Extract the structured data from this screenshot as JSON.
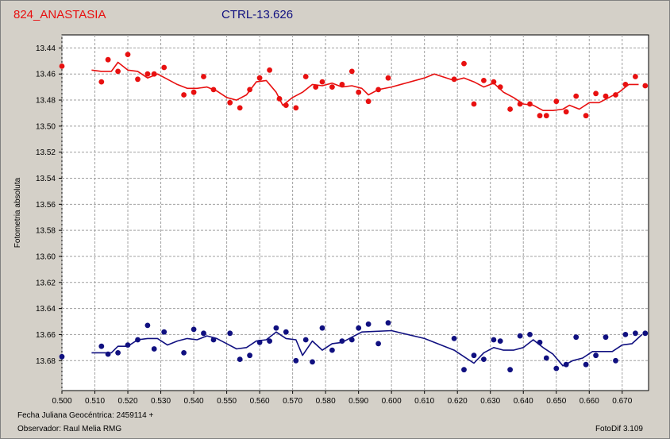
{
  "header": {
    "target": "824_ANASTASIA",
    "control": "CTRL-13.626"
  },
  "footer": {
    "jd": "Fecha Juliana Geocéntrica: 2459114 +",
    "observer": "Observador: Raul Melia RMG",
    "software": "FotoDif 3.109"
  },
  "colors": {
    "target": "#e81010",
    "control": "#101080",
    "plot_bg": "#ffffff",
    "grid": "#a0a0a0"
  },
  "chart_data": {
    "type": "scatter",
    "title": "",
    "xlabel": "",
    "ylabel": "Fotometria absoluta",
    "xlim": [
      0.5,
      0.678
    ],
    "ylim": [
      13.43,
      13.703
    ],
    "y_inverted": true,
    "grid": true,
    "x_ticks": [
      "0.500",
      "0.510",
      "0.520",
      "0.530",
      "0.540",
      "0.550",
      "0.560",
      "0.570",
      "0.580",
      "0.590",
      "0.600",
      "0.610",
      "0.620",
      "0.630",
      "0.640",
      "0.650",
      "0.660",
      "0.670"
    ],
    "y_ticks": [
      "13.44",
      "13.46",
      "13.48",
      "13.50",
      "13.52",
      "13.54",
      "13.56",
      "13.58",
      "13.60",
      "13.62",
      "13.64",
      "13.66",
      "13.68"
    ],
    "series": [
      {
        "key": "target",
        "points": [
          [
            0.5,
            13.454
          ],
          [
            0.512,
            13.466
          ],
          [
            0.514,
            13.449
          ],
          [
            0.517,
            13.458
          ],
          [
            0.52,
            13.445
          ],
          [
            0.523,
            13.464
          ],
          [
            0.526,
            13.46
          ],
          [
            0.528,
            13.46
          ],
          [
            0.531,
            13.455
          ],
          [
            0.537,
            13.476
          ],
          [
            0.54,
            13.474
          ],
          [
            0.543,
            13.462
          ],
          [
            0.546,
            13.472
          ],
          [
            0.551,
            13.482
          ],
          [
            0.554,
            13.486
          ],
          [
            0.557,
            13.472
          ],
          [
            0.56,
            13.463
          ],
          [
            0.563,
            13.457
          ],
          [
            0.566,
            13.479
          ],
          [
            0.568,
            13.484
          ],
          [
            0.571,
            13.486
          ],
          [
            0.574,
            13.462
          ],
          [
            0.577,
            13.47
          ],
          [
            0.579,
            13.466
          ],
          [
            0.582,
            13.47
          ],
          [
            0.585,
            13.468
          ],
          [
            0.588,
            13.458
          ],
          [
            0.59,
            13.474
          ],
          [
            0.593,
            13.481
          ],
          [
            0.596,
            13.472
          ],
          [
            0.599,
            13.463
          ],
          [
            0.619,
            13.464
          ],
          [
            0.622,
            13.452
          ],
          [
            0.625,
            13.483
          ],
          [
            0.628,
            13.465
          ],
          [
            0.631,
            13.466
          ],
          [
            0.633,
            13.47
          ],
          [
            0.636,
            13.487
          ],
          [
            0.639,
            13.483
          ],
          [
            0.642,
            13.483
          ],
          [
            0.645,
            13.492
          ],
          [
            0.647,
            13.492
          ],
          [
            0.65,
            13.481
          ],
          [
            0.653,
            13.489
          ],
          [
            0.656,
            13.477
          ],
          [
            0.659,
            13.492
          ],
          [
            0.662,
            13.475
          ],
          [
            0.665,
            13.477
          ],
          [
            0.668,
            13.476
          ],
          [
            0.671,
            13.468
          ],
          [
            0.674,
            13.462
          ],
          [
            0.677,
            13.469
          ]
        ],
        "fit": [
          [
            0.509,
            13.457
          ],
          [
            0.512,
            13.458
          ],
          [
            0.515,
            13.458
          ],
          [
            0.517,
            13.451
          ],
          [
            0.52,
            13.457
          ],
          [
            0.523,
            13.458
          ],
          [
            0.526,
            13.463
          ],
          [
            0.529,
            13.46
          ],
          [
            0.532,
            13.464
          ],
          [
            0.535,
            13.468
          ],
          [
            0.538,
            13.471
          ],
          [
            0.541,
            13.471
          ],
          [
            0.544,
            13.47
          ],
          [
            0.547,
            13.473
          ],
          [
            0.55,
            13.478
          ],
          [
            0.553,
            13.48
          ],
          [
            0.556,
            13.476
          ],
          [
            0.559,
            13.466
          ],
          [
            0.562,
            13.465
          ],
          [
            0.565,
            13.474
          ],
          [
            0.567,
            13.484
          ],
          [
            0.57,
            13.478
          ],
          [
            0.573,
            13.474
          ],
          [
            0.576,
            13.468
          ],
          [
            0.579,
            13.469
          ],
          [
            0.582,
            13.467
          ],
          [
            0.585,
            13.47
          ],
          [
            0.588,
            13.469
          ],
          [
            0.591,
            13.471
          ],
          [
            0.593,
            13.476
          ],
          [
            0.596,
            13.472
          ],
          [
            0.6,
            13.47
          ],
          [
            0.61,
            13.463
          ],
          [
            0.613,
            13.46
          ],
          [
            0.619,
            13.465
          ],
          [
            0.622,
            13.463
          ],
          [
            0.625,
            13.466
          ],
          [
            0.628,
            13.47
          ],
          [
            0.631,
            13.467
          ],
          [
            0.634,
            13.474
          ],
          [
            0.637,
            13.478
          ],
          [
            0.64,
            13.483
          ],
          [
            0.643,
            13.484
          ],
          [
            0.646,
            13.488
          ],
          [
            0.649,
            13.488
          ],
          [
            0.652,
            13.487
          ],
          [
            0.654,
            13.484
          ],
          [
            0.657,
            13.487
          ],
          [
            0.66,
            13.482
          ],
          [
            0.663,
            13.482
          ],
          [
            0.666,
            13.478
          ],
          [
            0.669,
            13.474
          ],
          [
            0.672,
            13.468
          ],
          [
            0.675,
            13.468
          ]
        ]
      },
      {
        "key": "control",
        "points": [
          [
            0.5,
            13.677
          ],
          [
            0.512,
            13.669
          ],
          [
            0.514,
            13.675
          ],
          [
            0.517,
            13.674
          ],
          [
            0.52,
            13.668
          ],
          [
            0.523,
            13.664
          ],
          [
            0.526,
            13.653
          ],
          [
            0.528,
            13.671
          ],
          [
            0.531,
            13.658
          ],
          [
            0.537,
            13.674
          ],
          [
            0.54,
            13.656
          ],
          [
            0.543,
            13.659
          ],
          [
            0.546,
            13.664
          ],
          [
            0.551,
            13.659
          ],
          [
            0.554,
            13.679
          ],
          [
            0.557,
            13.676
          ],
          [
            0.56,
            13.666
          ],
          [
            0.563,
            13.665
          ],
          [
            0.565,
            13.655
          ],
          [
            0.568,
            13.658
          ],
          [
            0.571,
            13.68
          ],
          [
            0.574,
            13.664
          ],
          [
            0.576,
            13.681
          ],
          [
            0.579,
            13.655
          ],
          [
            0.582,
            13.672
          ],
          [
            0.585,
            13.665
          ],
          [
            0.588,
            13.664
          ],
          [
            0.59,
            13.655
          ],
          [
            0.593,
            13.652
          ],
          [
            0.596,
            13.667
          ],
          [
            0.599,
            13.651
          ],
          [
            0.619,
            13.663
          ],
          [
            0.622,
            13.687
          ],
          [
            0.625,
            13.676
          ],
          [
            0.628,
            13.679
          ],
          [
            0.631,
            13.664
          ],
          [
            0.633,
            13.665
          ],
          [
            0.636,
            13.687
          ],
          [
            0.639,
            13.661
          ],
          [
            0.642,
            13.66
          ],
          [
            0.645,
            13.666
          ],
          [
            0.647,
            13.678
          ],
          [
            0.65,
            13.686
          ],
          [
            0.653,
            13.683
          ],
          [
            0.656,
            13.662
          ],
          [
            0.659,
            13.683
          ],
          [
            0.662,
            13.676
          ],
          [
            0.665,
            13.662
          ],
          [
            0.668,
            13.68
          ],
          [
            0.671,
            13.66
          ],
          [
            0.674,
            13.659
          ],
          [
            0.677,
            13.659
          ]
        ],
        "fit": [
          [
            0.509,
            13.674
          ],
          [
            0.512,
            13.674
          ],
          [
            0.515,
            13.674
          ],
          [
            0.517,
            13.669
          ],
          [
            0.52,
            13.669
          ],
          [
            0.523,
            13.664
          ],
          [
            0.526,
            13.663
          ],
          [
            0.529,
            13.663
          ],
          [
            0.532,
            13.668
          ],
          [
            0.535,
            13.665
          ],
          [
            0.538,
            13.663
          ],
          [
            0.541,
            13.664
          ],
          [
            0.544,
            13.661
          ],
          [
            0.547,
            13.663
          ],
          [
            0.55,
            13.667
          ],
          [
            0.553,
            13.671
          ],
          [
            0.556,
            13.67
          ],
          [
            0.559,
            13.665
          ],
          [
            0.562,
            13.664
          ],
          [
            0.565,
            13.658
          ],
          [
            0.568,
            13.663
          ],
          [
            0.571,
            13.664
          ],
          [
            0.573,
            13.676
          ],
          [
            0.576,
            13.665
          ],
          [
            0.579,
            13.672
          ],
          [
            0.582,
            13.667
          ],
          [
            0.585,
            13.666
          ],
          [
            0.588,
            13.662
          ],
          [
            0.591,
            13.658
          ],
          [
            0.6,
            13.657
          ],
          [
            0.61,
            13.663
          ],
          [
            0.619,
            13.672
          ],
          [
            0.622,
            13.677
          ],
          [
            0.625,
            13.682
          ],
          [
            0.628,
            13.674
          ],
          [
            0.631,
            13.67
          ],
          [
            0.634,
            13.672
          ],
          [
            0.637,
            13.672
          ],
          [
            0.64,
            13.67
          ],
          [
            0.643,
            13.664
          ],
          [
            0.646,
            13.67
          ],
          [
            0.649,
            13.675
          ],
          [
            0.652,
            13.684
          ],
          [
            0.655,
            13.68
          ],
          [
            0.658,
            13.678
          ],
          [
            0.661,
            13.673
          ],
          [
            0.664,
            13.673
          ],
          [
            0.667,
            13.673
          ],
          [
            0.67,
            13.668
          ],
          [
            0.673,
            13.667
          ],
          [
            0.676,
            13.66
          ]
        ]
      }
    ]
  }
}
